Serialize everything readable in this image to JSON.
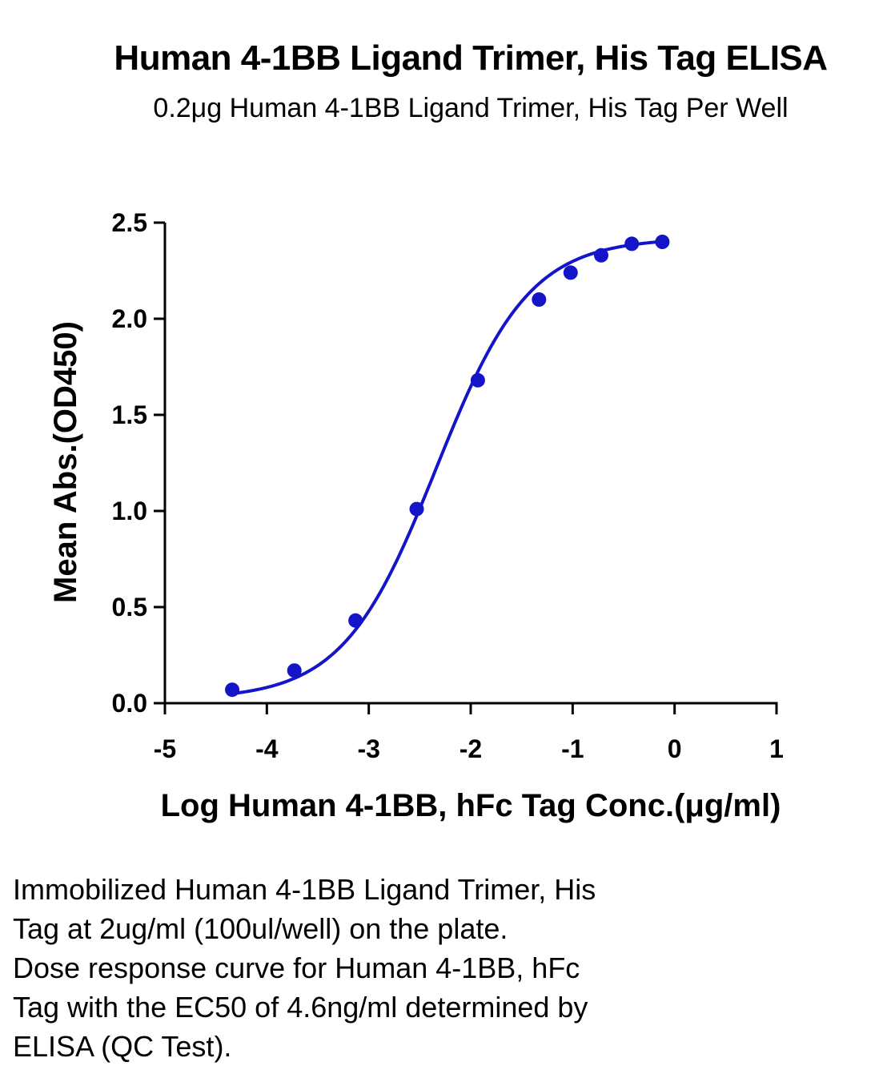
{
  "chart_data": {
    "type": "scatter",
    "title": "Human 4-1BB Ligand Trimer, His Tag ELISA",
    "subtitle": "0.2μg Human 4-1BB Ligand Trimer, His Tag Per Well",
    "xlabel": "Log Human 4-1BB, hFc Tag Conc.(μg/ml)",
    "ylabel": "Mean Abs.(OD450)",
    "xlim": [
      -5,
      1
    ],
    "ylim": [
      0,
      2.5
    ],
    "x_ticks": [
      "-5",
      "-4",
      "-3",
      "-2",
      "-1",
      "0",
      "1"
    ],
    "y_ticks": [
      "0.0",
      "0.5",
      "1.0",
      "1.5",
      "2.0",
      "2.5"
    ],
    "grid": false,
    "series": [
      {
        "color": "#1414c8",
        "x": [
          -4.34,
          -3.73,
          -3.13,
          -2.53,
          -1.93,
          -1.33,
          -1.02,
          -0.72,
          -0.42,
          -0.12
        ],
        "y": [
          0.07,
          0.17,
          0.43,
          1.01,
          1.68,
          2.1,
          2.24,
          2.33,
          2.39,
          2.4
        ],
        "fit": "4PL"
      }
    ]
  },
  "caption": {
    "lines": [
      "Immobilized Human 4-1BB Ligand Trimer, His",
      "Tag at 2ug/ml (100ul/well) on the plate.",
      "Dose response curve for Human 4-1BB, hFc",
      "Tag with the EC50 of 4.6ng/ml determined by",
      "ELISA (QC Test)."
    ]
  }
}
